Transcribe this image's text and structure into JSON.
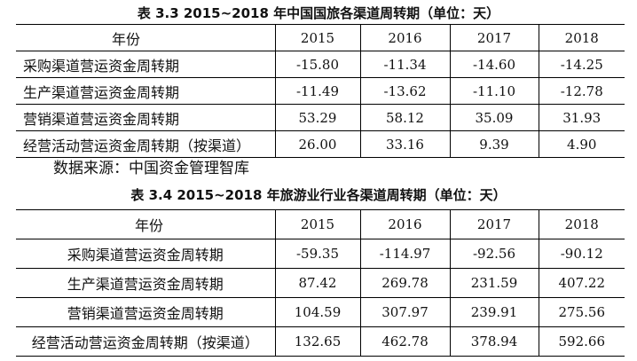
{
  "table1": {
    "caption": "表 3.3  2015~2018 年中国国旅各渠道周转期（单位：天）",
    "header": [
      "年份",
      "2015",
      "2016",
      "2017",
      "2018"
    ],
    "rows": [
      [
        "采购渠道营运资金周转期",
        "-15.80",
        "-11.34",
        "-14.60",
        "-14.25"
      ],
      [
        "生产渠道营运资金周转期",
        "-11.49",
        "-13.62",
        "-11.10",
        "-12.78"
      ],
      [
        "营销渠道营运资金周转期",
        "53.29",
        "58.12",
        "35.09",
        "31.93"
      ],
      [
        "经营活动营运资金周转期（按渠道）",
        "26.00",
        "33.16",
        "9.39",
        "4.90"
      ]
    ]
  },
  "source_note": "数据来源：中国资金管理智库",
  "table2": {
    "caption": "表 3.4  2015~2018 年旅游业行业各渠道周转期（单位：天）",
    "header": [
      "年份",
      "2015",
      "2016",
      "2017",
      "2018"
    ],
    "rows": [
      [
        "采购渠道营运资金周转期",
        "-59.35",
        "-114.97",
        "-92.56",
        "-90.12"
      ],
      [
        "生产渠道营运资金周转期",
        "87.42",
        "269.78",
        "231.59",
        "407.22"
      ],
      [
        "营销渠道营运资金周转期",
        "104.59",
        "307.97",
        "239.91",
        "275.56"
      ],
      [
        "经营活动营运资金周转期（按渠道）",
        "132.65",
        "462.78",
        "378.94",
        "592.66"
      ]
    ]
  }
}
